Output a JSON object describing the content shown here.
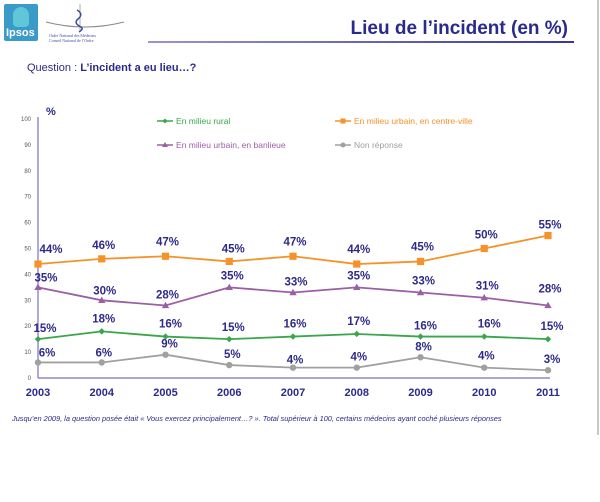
{
  "header": {
    "title": "Lieu de l’incident (en %)",
    "logo_ipsos_text": "Ipsos",
    "logo_ordre_line1": "Ordre National des Médecins",
    "logo_ordre_line2": "Conseil National de l’Ordre"
  },
  "question": {
    "prefix": "Question : ",
    "text": "L’incident a eu lieu…?"
  },
  "footnote": "Jusqu’en 2009, la question posée était « Vous exercez principalement…? ». Total supérieur à 100, certains médecins ayant coché plusieurs réponses",
  "chart_data": {
    "type": "line",
    "title": "Lieu de l’incident (en %)",
    "ylabel": "%",
    "xlabel": "",
    "ylim": [
      0,
      100
    ],
    "yticks": [
      0,
      10,
      20,
      30,
      40,
      50,
      60,
      70,
      80,
      90,
      100
    ],
    "grid": false,
    "legend_position": "top",
    "x": [
      "2003",
      "2004",
      "2005",
      "2006",
      "2007",
      "2008",
      "2009",
      "2010",
      "2011"
    ],
    "series": [
      {
        "name": "En milieu rural",
        "color": "#3aa64a",
        "marker": "diamond",
        "values": [
          15,
          18,
          16,
          15,
          16,
          17,
          16,
          16,
          15
        ]
      },
      {
        "name": "En milieu urbain, en centre-ville",
        "color": "#f5922a",
        "marker": "square",
        "values": [
          44,
          46,
          47,
          45,
          47,
          44,
          45,
          50,
          55
        ]
      },
      {
        "name": "En milieu urbain, en banlieue",
        "color": "#9b5fa6",
        "marker": "triangle",
        "values": [
          35,
          30,
          28,
          35,
          33,
          35,
          33,
          31,
          28
        ]
      },
      {
        "name": "Non réponse",
        "color": "#a0a0a0",
        "marker": "circle",
        "values": [
          6,
          6,
          9,
          5,
          4,
          4,
          8,
          4,
          3
        ]
      }
    ]
  },
  "colors": {
    "title": "#2a2a8c",
    "axis": "#7a72c0"
  }
}
